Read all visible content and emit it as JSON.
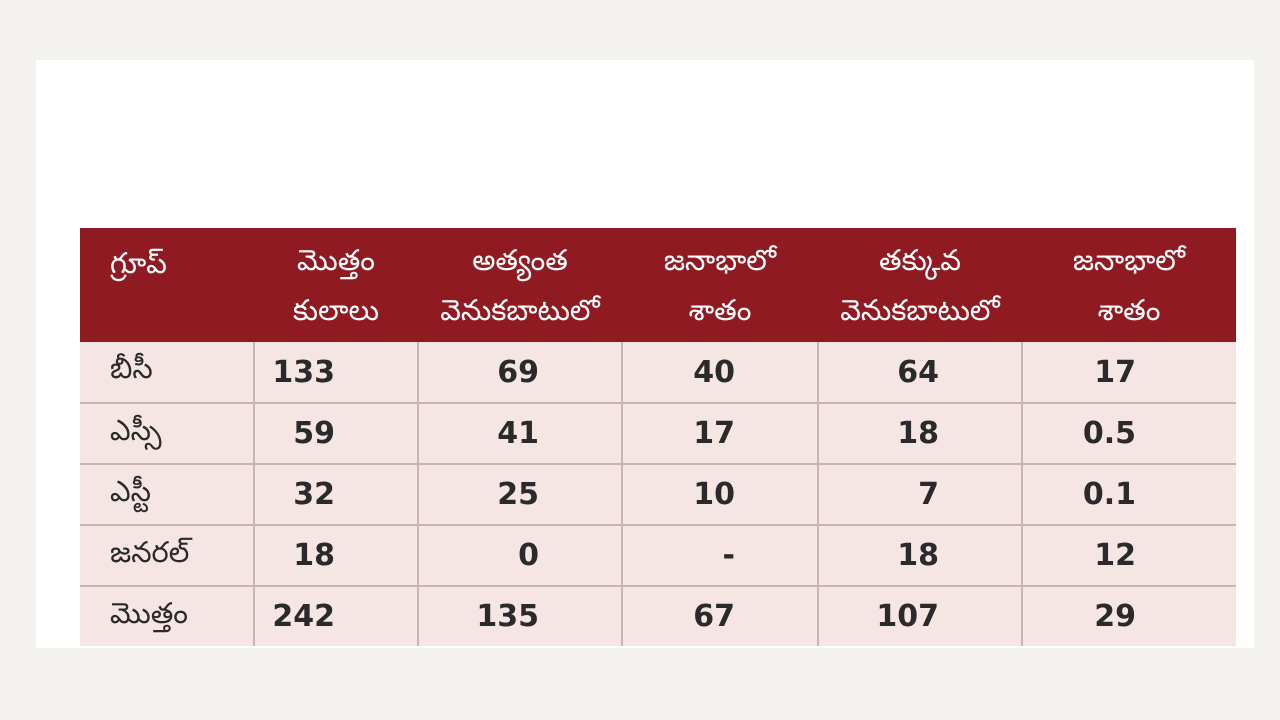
{
  "chart_data": {
    "type": "table",
    "columns": [
      {
        "lines": [
          "గ్రూప్"
        ]
      },
      {
        "lines": [
          "మొత్తం",
          "కులాలు"
        ]
      },
      {
        "lines": [
          "అత్యంత",
          "వెనుకబాటులో"
        ]
      },
      {
        "lines": [
          "జనాభాలో",
          "శాతం"
        ]
      },
      {
        "lines": [
          "తక్కువ",
          "వెనుకబాటులో"
        ]
      },
      {
        "lines": [
          "జనాభాలో",
          "శాతం"
        ]
      }
    ],
    "rows": [
      [
        "బీసీ",
        "133",
        "69",
        "40",
        "64",
        "17"
      ],
      [
        "ఎస్సీ",
        "59",
        "41",
        "17",
        "18",
        "0.5"
      ],
      [
        "ఎస్టీ",
        "32",
        "25",
        "10",
        "7",
        "0.1"
      ],
      [
        "జనరల్",
        "18",
        "0",
        "-",
        "18",
        "12"
      ],
      [
        "మొత్తం",
        "242",
        "135",
        "67",
        "107",
        "29"
      ]
    ],
    "colors": {
      "header_bg": "#8f1a22",
      "header_text": "#ffffff",
      "row_bg": "#f5e6e4",
      "grid": "#c9b3b3"
    }
  }
}
